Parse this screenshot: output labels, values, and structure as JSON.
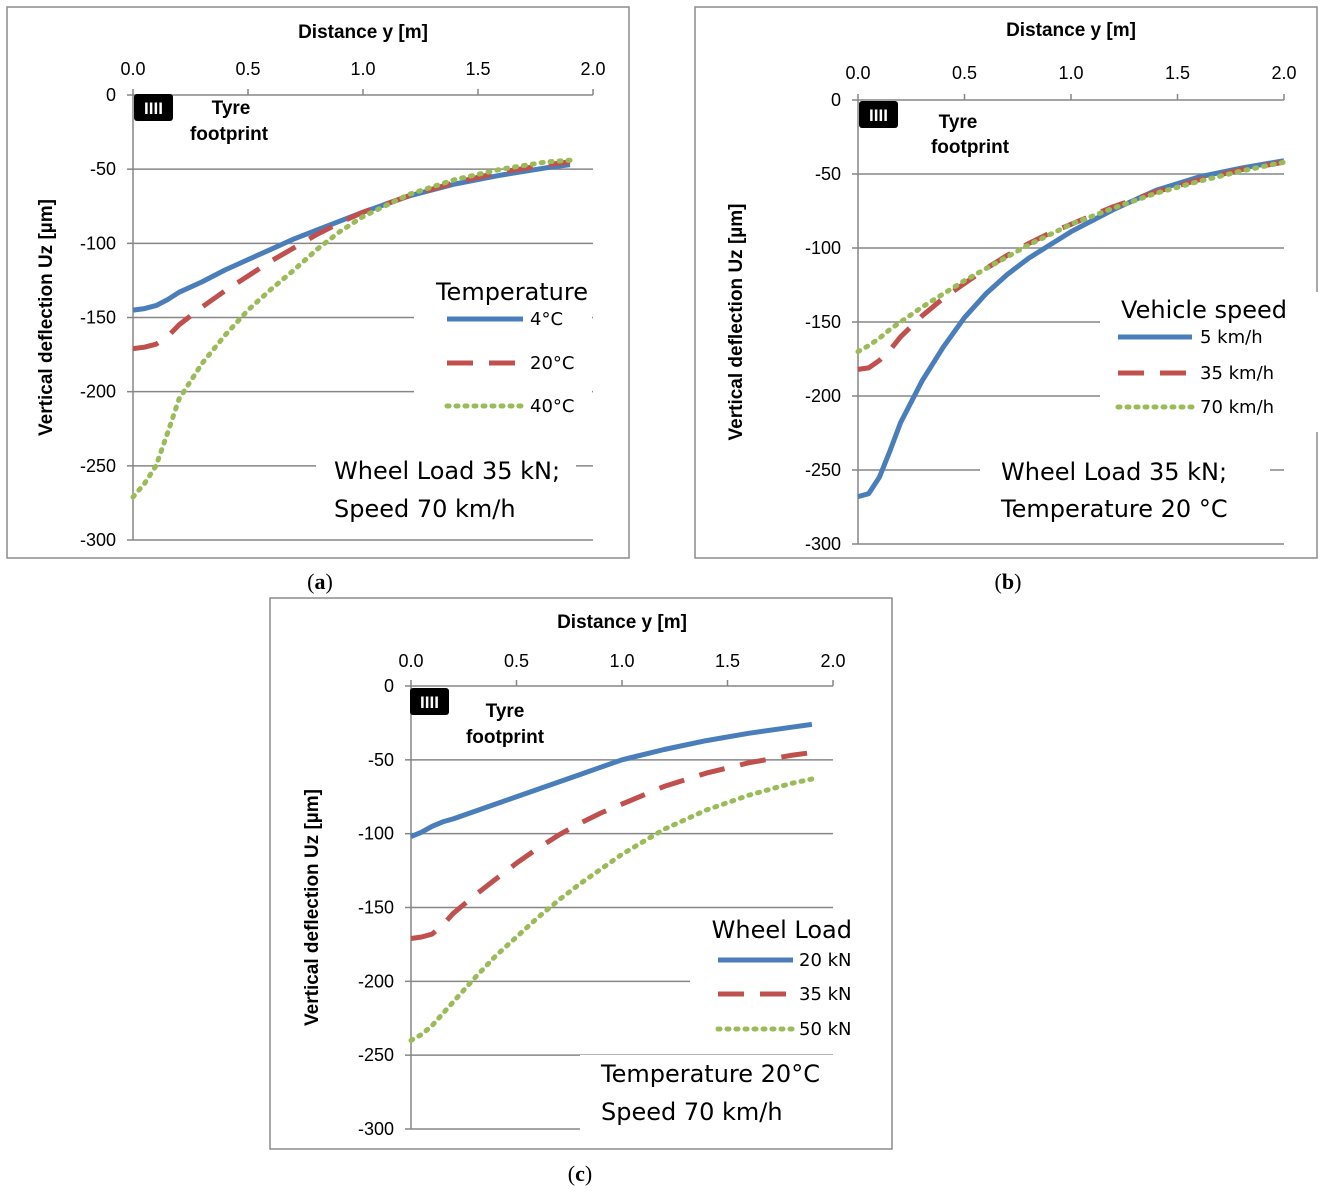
{
  "chart_data": [
    {
      "panel": "a",
      "caption": "(a)",
      "caption_letter": "a",
      "type": "line",
      "title": "",
      "xlabel": "Distance y [m]",
      "ylabel": "Vertical deflection Uz [µm]",
      "xlim": [
        0,
        2
      ],
      "ylim": [
        -300,
        0
      ],
      "x_ticks": [
        "0.0",
        "0.5",
        "1.0",
        "1.5",
        "2.0"
      ],
      "y_ticks": [
        "0",
        "-50",
        "-100",
        "-150",
        "-200",
        "-250",
        "-300"
      ],
      "grid": "horizontal",
      "footprint_label": [
        "Tyre",
        "footprint"
      ],
      "badge_label": "IIII",
      "legend_title": "Temperature",
      "note_lines": [
        "Wheel Load 35 kN;",
        "Speed 70 km/h"
      ],
      "series": [
        {
          "name": "4°C",
          "color": "#4a7ebb",
          "style": "solid",
          "x": [
            0,
            0.05,
            0.1,
            0.15,
            0.2,
            0.3,
            0.4,
            0.5,
            0.6,
            0.7,
            0.8,
            0.9,
            1.0,
            1.2,
            1.4,
            1.6,
            1.8,
            1.9
          ],
          "y": [
            -145,
            -144,
            -142,
            -138,
            -133,
            -126,
            -118,
            -111,
            -104,
            -97,
            -91,
            -85,
            -79,
            -68,
            -60,
            -54,
            -49,
            -47
          ]
        },
        {
          "name": "20°C",
          "color": "#c0504d",
          "style": "dashed",
          "x": [
            0,
            0.05,
            0.1,
            0.15,
            0.2,
            0.3,
            0.4,
            0.5,
            0.6,
            0.7,
            0.8,
            0.9,
            1.0,
            1.2,
            1.4,
            1.6,
            1.8,
            1.9
          ],
          "y": [
            -171,
            -170,
            -168,
            -163,
            -155,
            -143,
            -132,
            -122,
            -112,
            -103,
            -94,
            -86,
            -79,
            -68,
            -59,
            -52,
            -47,
            -45
          ]
        },
        {
          "name": "40°C",
          "color": "#9bbb59",
          "style": "dotted",
          "x": [
            0,
            0.05,
            0.1,
            0.15,
            0.2,
            0.3,
            0.4,
            0.5,
            0.6,
            0.7,
            0.8,
            0.9,
            1.0,
            1.2,
            1.4,
            1.6,
            1.8,
            1.9
          ],
          "y": [
            -271,
            -262,
            -250,
            -228,
            -205,
            -181,
            -162,
            -145,
            -131,
            -118,
            -104,
            -92,
            -82,
            -67,
            -57,
            -50,
            -45,
            -44
          ]
        }
      ]
    },
    {
      "panel": "b",
      "caption": "(b)",
      "caption_letter": "b",
      "type": "line",
      "title": "",
      "xlabel": "Distance y [m]",
      "ylabel": "Vertical deflection Uz [µm]",
      "xlim": [
        0,
        2
      ],
      "ylim": [
        -300,
        0
      ],
      "x_ticks": [
        "0.0",
        "0.5",
        "1.0",
        "1.5",
        "2.0"
      ],
      "y_ticks": [
        "0",
        "-50",
        "-100",
        "-150",
        "-200",
        "-250",
        "-300"
      ],
      "grid": "horizontal",
      "footprint_label": [
        "Tyre",
        "footprint"
      ],
      "badge_label": "IIII",
      "legend_title": "Vehicle speed",
      "note_lines": [
        "Wheel Load 35 kN;",
        "Temperature 20 °C"
      ],
      "series": [
        {
          "name": "5 km/h",
          "color": "#4a7ebb",
          "style": "solid",
          "x": [
            0,
            0.05,
            0.1,
            0.15,
            0.2,
            0.3,
            0.4,
            0.5,
            0.6,
            0.7,
            0.8,
            0.9,
            1.0,
            1.2,
            1.4,
            1.6,
            1.8,
            2.0
          ],
          "y": [
            -268,
            -266,
            -255,
            -237,
            -218,
            -190,
            -167,
            -147,
            -131,
            -118,
            -107,
            -98,
            -89,
            -74,
            -61,
            -52,
            -46,
            -41
          ]
        },
        {
          "name": "35 km/h",
          "color": "#c0504d",
          "style": "dashed",
          "x": [
            0,
            0.05,
            0.1,
            0.15,
            0.2,
            0.3,
            0.4,
            0.5,
            0.6,
            0.7,
            0.8,
            0.9,
            1.0,
            1.2,
            1.4,
            1.6,
            1.8,
            2.0
          ],
          "y": [
            -182,
            -181,
            -176,
            -169,
            -160,
            -146,
            -134,
            -124,
            -114,
            -105,
            -97,
            -90,
            -84,
            -72,
            -62,
            -54,
            -47,
            -42
          ]
        },
        {
          "name": "70 km/h",
          "color": "#9bbb59",
          "style": "dotted",
          "x": [
            0,
            0.05,
            0.1,
            0.15,
            0.2,
            0.3,
            0.4,
            0.5,
            0.6,
            0.7,
            0.8,
            0.9,
            1.0,
            1.2,
            1.4,
            1.6,
            1.8,
            2.0
          ],
          "y": [
            -170,
            -166,
            -161,
            -155,
            -150,
            -140,
            -131,
            -122,
            -114,
            -106,
            -98,
            -91,
            -84,
            -73,
            -63,
            -55,
            -48,
            -42
          ]
        }
      ]
    },
    {
      "panel": "c",
      "caption": "(c)",
      "caption_letter": "c",
      "type": "line",
      "title": "",
      "xlabel": "Distance y [m]",
      "ylabel": "Vertical deflection Uz [µm]",
      "xlim": [
        0,
        2
      ],
      "ylim": [
        -300,
        0
      ],
      "x_ticks": [
        "0.0",
        "0.5",
        "1.0",
        "1.5",
        "2.0"
      ],
      "y_ticks": [
        "0",
        "-50",
        "-100",
        "-150",
        "-200",
        "-250",
        "-300"
      ],
      "grid": "horizontal",
      "footprint_label": [
        "Tyre",
        "footprint"
      ],
      "badge_label": "IIII",
      "legend_title": "Wheel Load",
      "note_lines": [
        "Temperature 20°C",
        "Speed 70 km/h"
      ],
      "series": [
        {
          "name": "20 kN",
          "color": "#4a7ebb",
          "style": "solid",
          "x": [
            0,
            0.05,
            0.1,
            0.15,
            0.2,
            0.3,
            0.4,
            0.5,
            0.6,
            0.7,
            0.8,
            0.9,
            1.0,
            1.2,
            1.4,
            1.6,
            1.8,
            1.9
          ],
          "y": [
            -102,
            -99,
            -95,
            -92,
            -90,
            -85,
            -80,
            -75,
            -70,
            -65,
            -60,
            -55,
            -50,
            -43,
            -37,
            -32,
            -28,
            -26
          ]
        },
        {
          "name": "35 kN",
          "color": "#c0504d",
          "style": "dashed",
          "x": [
            0,
            0.05,
            0.1,
            0.15,
            0.2,
            0.3,
            0.4,
            0.5,
            0.6,
            0.7,
            0.8,
            0.9,
            1.0,
            1.2,
            1.4,
            1.6,
            1.8,
            1.9
          ],
          "y": [
            -171,
            -170,
            -168,
            -162,
            -154,
            -142,
            -131,
            -120,
            -110,
            -101,
            -93,
            -86,
            -80,
            -68,
            -59,
            -52,
            -47,
            -45
          ]
        },
        {
          "name": "50 kN",
          "color": "#9bbb59",
          "style": "dotted",
          "x": [
            0,
            0.05,
            0.1,
            0.15,
            0.2,
            0.3,
            0.4,
            0.5,
            0.6,
            0.7,
            0.8,
            0.9,
            1.0,
            1.2,
            1.4,
            1.6,
            1.8,
            1.9
          ],
          "y": [
            -240,
            -236,
            -230,
            -222,
            -214,
            -198,
            -183,
            -170,
            -157,
            -145,
            -134,
            -124,
            -114,
            -97,
            -84,
            -74,
            -66,
            -63
          ]
        }
      ]
    }
  ]
}
